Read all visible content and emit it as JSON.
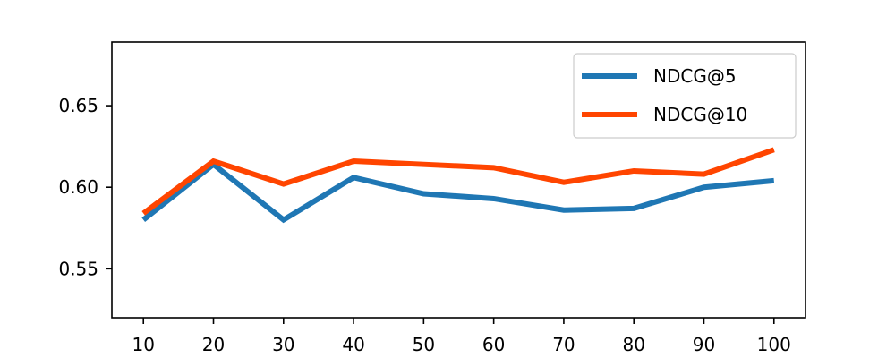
{
  "chart_data": {
    "type": "line",
    "title": "",
    "xlabel": "",
    "ylabel": "",
    "x": [
      10,
      20,
      30,
      40,
      50,
      60,
      70,
      80,
      90,
      100
    ],
    "x_ticks": [
      "10",
      "20",
      "30",
      "40",
      "50",
      "60",
      "70",
      "80",
      "90",
      "100"
    ],
    "y_ticks": [
      "0.55",
      "0.60",
      "0.65"
    ],
    "ylim": [
      0.52,
      0.689
    ],
    "xlim": [
      5.5,
      104.5
    ],
    "grid": false,
    "legend_position": "upper right",
    "series": [
      {
        "name": "NDCG@5",
        "color": "#1f77b4",
        "values": [
          0.58,
          0.614,
          0.58,
          0.606,
          0.596,
          0.593,
          0.586,
          0.587,
          0.6,
          0.604
        ]
      },
      {
        "name": "NDCG@10",
        "color": "#ff4500",
        "values": [
          0.584,
          0.616,
          0.602,
          0.616,
          0.614,
          0.612,
          0.603,
          0.61,
          0.608,
          0.623
        ]
      }
    ]
  }
}
